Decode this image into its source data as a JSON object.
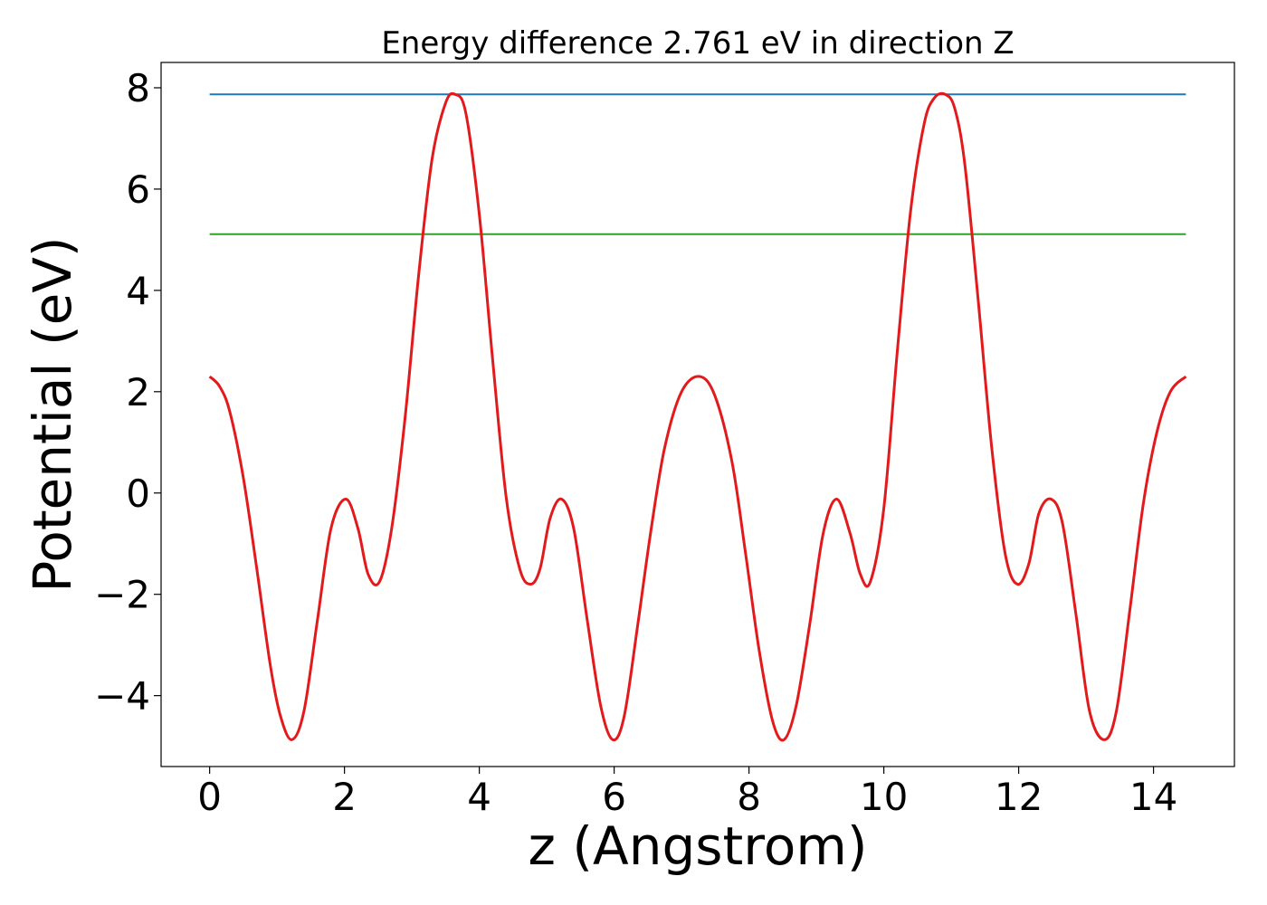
{
  "chart_data": {
    "type": "line",
    "title": "Energy difference 2.761 eV in direction Z",
    "xlabel": "z (Angstrom)",
    "ylabel": "Potential (eV)",
    "xlim": [
      -0.72,
      15.2
    ],
    "ylim": [
      -5.4,
      8.5
    ],
    "xticks": [
      0,
      2,
      4,
      6,
      8,
      10,
      12,
      14
    ],
    "xtick_labels": [
      "0",
      "2",
      "4",
      "6",
      "8",
      "10",
      "12",
      "14"
    ],
    "yticks": [
      -4,
      -2,
      0,
      2,
      4,
      6,
      8
    ],
    "ytick_labels": [
      "−4",
      "−2",
      "0",
      "2",
      "4",
      "6",
      "8"
    ],
    "grid": false,
    "series": [
      {
        "color": "#e31a1c",
        "x": [
          0,
          0.15,
          0.3,
          0.5,
          0.7,
          0.9,
          1.05,
          1.22,
          1.4,
          1.6,
          1.8,
          2.02,
          2.2,
          2.35,
          2.52,
          2.7,
          2.9,
          3.1,
          3.3,
          3.5,
          3.64,
          3.8,
          4.0,
          4.2,
          4.4,
          4.6,
          4.76,
          4.9,
          5.05,
          5.22,
          5.4,
          5.6,
          5.8,
          5.98,
          6.15,
          6.35,
          6.55,
          6.75,
          7.0,
          7.27,
          7.5,
          7.75,
          7.95,
          8.15,
          8.35,
          8.52,
          8.7,
          8.9,
          9.1,
          9.3,
          9.5,
          9.65,
          9.8,
          10.0,
          10.2,
          10.4,
          10.6,
          10.75,
          10.91,
          11.05,
          11.2,
          11.4,
          11.6,
          11.8,
          11.98,
          12.15,
          12.3,
          12.48,
          12.65,
          12.85,
          13.05,
          13.27,
          13.45,
          13.65,
          13.85,
          14.05,
          14.25,
          14.48
        ],
        "y": [
          2.3,
          2.1,
          1.6,
          0.3,
          -1.5,
          -3.4,
          -4.4,
          -4.87,
          -4.3,
          -2.5,
          -0.7,
          -0.12,
          -0.7,
          -1.6,
          -1.75,
          -0.7,
          1.5,
          4.3,
          6.6,
          7.7,
          7.87,
          7.5,
          5.5,
          2.6,
          -0.1,
          -1.5,
          -1.8,
          -1.5,
          -0.5,
          -0.12,
          -0.7,
          -2.5,
          -4.2,
          -4.87,
          -4.4,
          -2.6,
          -0.7,
          0.9,
          2.0,
          2.3,
          1.9,
          0.6,
          -1.2,
          -3.1,
          -4.5,
          -4.87,
          -4.2,
          -2.6,
          -0.8,
          -0.12,
          -0.8,
          -1.6,
          -1.75,
          -0.3,
          2.8,
          5.6,
          7.3,
          7.8,
          7.87,
          7.6,
          6.5,
          3.8,
          0.9,
          -1.2,
          -1.8,
          -1.4,
          -0.4,
          -0.12,
          -0.6,
          -2.4,
          -4.3,
          -4.87,
          -4.3,
          -2.3,
          -0.2,
          1.2,
          2.0,
          2.3
        ]
      },
      {
        "color": "#1f78b4",
        "x": [
          0,
          14.48
        ],
        "y": [
          7.87,
          7.87
        ]
      },
      {
        "color": "#33a02c",
        "x": [
          0,
          14.48
        ],
        "y": [
          5.11,
          5.11
        ]
      }
    ]
  }
}
